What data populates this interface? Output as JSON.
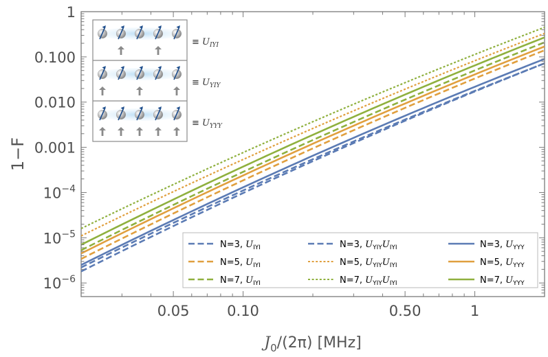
{
  "chart_data": {
    "type": "line",
    "xscale": "log",
    "yscale": "log",
    "xlim": [
      0.02,
      2.0
    ],
    "ylim": [
      5e-07,
      1
    ],
    "xlabel": "J0/(2π) [MHz]",
    "xlabel_main": "J",
    "xlabel_sub": "0",
    "xlabel_rest": "/(2π) [MHz]",
    "ylabel": "1−F",
    "xticks": [
      {
        "value": 0.05,
        "label": "0.05"
      },
      {
        "value": 0.1,
        "label": "0.10"
      },
      {
        "value": 0.5,
        "label": "0.50"
      },
      {
        "value": 1,
        "label": "1"
      }
    ],
    "yticks": [
      {
        "value": 1,
        "label": "1",
        "exp": ""
      },
      {
        "value": 0.1,
        "label": "0.100",
        "exp": ""
      },
      {
        "value": 0.01,
        "label": "0.010",
        "exp": ""
      },
      {
        "value": 0.001,
        "label": "0.001",
        "exp": ""
      },
      {
        "value": 0.0001,
        "label": "10",
        "exp": "−4"
      },
      {
        "value": 1e-05,
        "label": "10",
        "exp": "−5"
      },
      {
        "value": 1e-06,
        "label": "10",
        "exp": "−6"
      }
    ],
    "grid": false,
    "legend_position": "bottom-right",
    "colors": {
      "blue": "#5b7bb4",
      "orange": "#e09f3e",
      "green": "#8fb03e"
    },
    "series": [
      {
        "name": "N=3, U_IYI",
        "label_main": "N=3, ",
        "label_sym": "U",
        "label_sub": "IYI",
        "color": "blue",
        "dash": "dashed",
        "y_start": 1.8e-06,
        "y_end": 0.072
      },
      {
        "name": "N=5, U_IYI",
        "label_main": "N=5, ",
        "label_sym": "U",
        "label_sub": "IYI",
        "color": "orange",
        "dash": "dashed",
        "y_start": 3.4e-06,
        "y_end": 0.14
      },
      {
        "name": "N=7, U_IYI",
        "label_main": "N=7, ",
        "label_sym": "U",
        "label_sub": "IYI",
        "color": "green",
        "dash": "dashed",
        "y_start": 5.3e-06,
        "y_end": 0.21
      },
      {
        "name": "N=3, U_YIY U_IYI",
        "label_main": "N=3, ",
        "label_sym": "U",
        "label_sub": "YIY",
        "label_sym2": "U",
        "label_sub2": "IYI",
        "color": "blue",
        "dash": "dashed",
        "y_start": 2.2e-06,
        "y_end": 0.072
      },
      {
        "name": "N=5, U_YIY U_IYI",
        "label_main": "N=5, ",
        "label_sym": "U",
        "label_sub": "YIY",
        "label_sym2": "U",
        "label_sub2": "IYI",
        "color": "orange",
        "dash": "dotted",
        "y_start": 1.1e-05,
        "y_end": 0.33
      },
      {
        "name": "N=7, U_YIY U_IYI",
        "label_main": "N=7, ",
        "label_sym": "U",
        "label_sub": "YIY",
        "label_sym2": "U",
        "label_sub2": "IYI",
        "color": "green",
        "dash": "dotted",
        "y_start": 1.6e-05,
        "y_end": 0.45
      },
      {
        "name": "N=3, U_YYY",
        "label_main": "N=3, ",
        "label_sym": "U",
        "label_sub": "YYY",
        "color": "blue",
        "dash": "solid",
        "y_start": 2.5e-06,
        "y_end": 0.09
      },
      {
        "name": "N=5, U_YYY",
        "label_main": "N=5, ",
        "label_sym": "U",
        "label_sub": "YYY",
        "color": "orange",
        "dash": "solid",
        "y_start": 4.5e-06,
        "y_end": 0.17
      },
      {
        "name": "N=7, U_YYY",
        "label_main": "N=7, ",
        "label_sym": "U",
        "label_sub": "YYY",
        "color": "green",
        "dash": "solid",
        "y_start": 7e-06,
        "y_end": 0.27
      }
    ],
    "series_shape": "power-law-with-curvature",
    "inset": {
      "rows": [
        {
          "label_sym": "U",
          "label_sub": "IYI",
          "arrows_under": [
            1,
            3
          ]
        },
        {
          "label_sym": "U",
          "label_sub": "YIY",
          "arrows_under": [
            0,
            2,
            4
          ]
        },
        {
          "label_sym": "U",
          "label_sub": "YYY",
          "arrows_under": [
            0,
            1,
            2,
            3,
            4
          ]
        }
      ],
      "equiv_symbol": "≡"
    }
  }
}
